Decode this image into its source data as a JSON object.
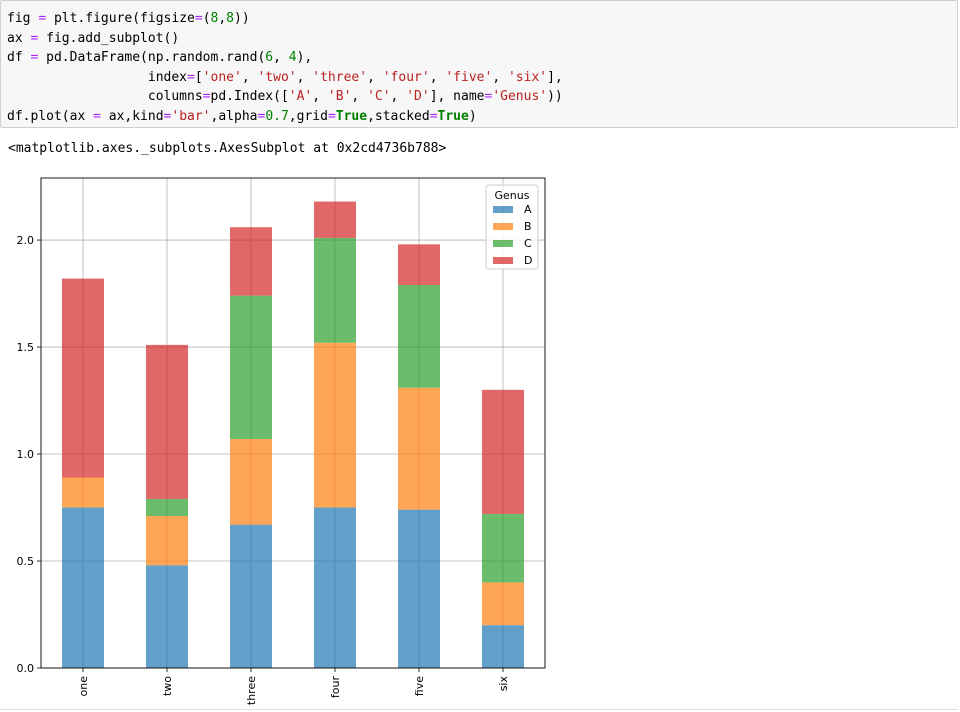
{
  "code_cell": {
    "lines": [
      "fig = plt.figure(figsize=(8,8))",
      "ax = fig.add_subplot()",
      "df = pd.DataFrame(np.random.rand(6, 4),",
      "                  index=['one', 'two', 'three', 'four', 'five', 'six'],",
      "                  columns=pd.Index(['A', 'B', 'C', 'D'], name='Genus'))",
      "df.plot(ax = ax,kind='bar',alpha=0.7,grid=True,stacked=True)"
    ]
  },
  "output_text": "<matplotlib.axes._subplots.AxesSubplot at 0x2cd4736b788>",
  "colors": {
    "A": "#1f77b4",
    "B": "#ff7f0e",
    "C": "#2ca02c",
    "D": "#d62728"
  },
  "chart_data": {
    "type": "bar",
    "stacked": true,
    "categories": [
      "one",
      "two",
      "three",
      "four",
      "five",
      "six"
    ],
    "series": [
      {
        "name": "A",
        "values": [
          0.75,
          0.48,
          0.67,
          0.75,
          0.74,
          0.2
        ]
      },
      {
        "name": "B",
        "values": [
          0.14,
          0.23,
          0.4,
          0.77,
          0.57,
          0.2
        ]
      },
      {
        "name": "C",
        "values": [
          0.0,
          0.08,
          0.67,
          0.49,
          0.48,
          0.32
        ]
      },
      {
        "name": "D",
        "values": [
          0.93,
          0.72,
          0.32,
          0.17,
          0.19,
          0.58
        ]
      }
    ],
    "ylim": [
      0,
      2.29
    ],
    "yticks": [
      "0.0",
      "0.5",
      "1.0",
      "1.5",
      "2.0"
    ],
    "yticks_values": [
      0,
      0.5,
      1.0,
      1.5,
      2.0
    ],
    "legend_title": "Genus",
    "legend_location": "top-right",
    "grid": true,
    "alpha": 0.7
  }
}
